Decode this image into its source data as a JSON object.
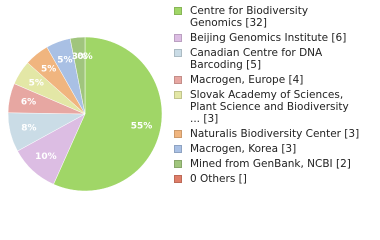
{
  "chart_data": {
    "type": "pie",
    "categories": [
      "Centre for Biodiversity Genomics [32]",
      "Beijing Genomics Institute [6]",
      "Canadian Centre for DNA Barcoding [5]",
      "Macrogen, Europe [4]",
      "Slovak Academy of Sciences, Plant Science and Biodiversity ... [3]",
      "Naturalis Biodiversity Center [3]",
      "Macrogen, Korea [3]",
      "Mined from GenBank, NCBI [2]",
      "0 Others []"
    ],
    "values": [
      55,
      10,
      8,
      6,
      5,
      5,
      5,
      3,
      0
    ],
    "value_labels": [
      "55%",
      "10%",
      "8%",
      "6%",
      "5%",
      "5%",
      "5%",
      "3%",
      "0%"
    ],
    "colors": [
      "#a0d667",
      "#dcbde3",
      "#cadce6",
      "#e7a7a2",
      "#e3e7a6",
      "#f0b57f",
      "#a9c0e4",
      "#a0c57d",
      "#df7d68"
    ]
  }
}
